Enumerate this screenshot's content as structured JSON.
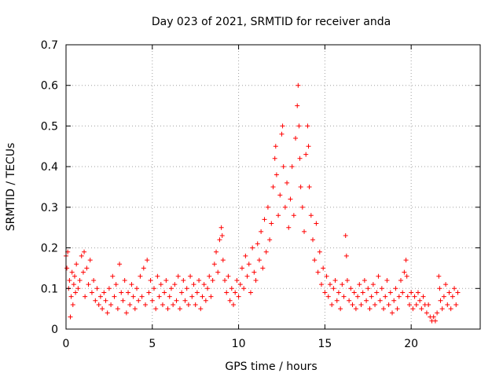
{
  "chart_data": {
    "type": "scatter",
    "title": "Day 023 of 2021, SRMTID for receiver anda",
    "xlabel": "GPS time / hours",
    "ylabel": "SRMTID / TECUs",
    "xlim": [
      0,
      24
    ],
    "ylim": [
      0,
      0.7
    ],
    "x_ticks": [
      0,
      5,
      10,
      15,
      20
    ],
    "y_ticks": [
      0,
      0.1,
      0.2,
      0.3,
      0.4,
      0.5,
      0.6,
      0.7
    ],
    "x_tick_labels": [
      "0",
      "5",
      "10",
      "15",
      "20"
    ],
    "y_tick_labels": [
      "0",
      "0.1",
      "0.2",
      "0.3",
      "0.4",
      "0.5",
      "0.6",
      "0.7"
    ],
    "grid": true,
    "marker": "+",
    "color": "#ff0000",
    "series": [
      {
        "name": "SRMTID",
        "points": [
          [
            0.0,
            0.18
          ],
          [
            0.05,
            0.15
          ],
          [
            0.1,
            0.19
          ],
          [
            0.15,
            0.1
          ],
          [
            0.2,
            0.12
          ],
          [
            0.25,
            0.03
          ],
          [
            0.3,
            0.08
          ],
          [
            0.35,
            0.14
          ],
          [
            0.4,
            0.06
          ],
          [
            0.45,
            0.11
          ],
          [
            0.5,
            0.13
          ],
          [
            0.55,
            0.09
          ],
          [
            0.6,
            0.16
          ],
          [
            0.7,
            0.1
          ],
          [
            0.8,
            0.12
          ],
          [
            0.9,
            0.18
          ],
          [
            1.0,
            0.14
          ],
          [
            1.05,
            0.19
          ],
          [
            1.1,
            0.08
          ],
          [
            1.2,
            0.15
          ],
          [
            1.3,
            0.11
          ],
          [
            1.4,
            0.17
          ],
          [
            1.5,
            0.09
          ],
          [
            1.6,
            0.12
          ],
          [
            1.7,
            0.07
          ],
          [
            1.8,
            0.1
          ],
          [
            1.9,
            0.06
          ],
          [
            2.0,
            0.08
          ],
          [
            2.1,
            0.05
          ],
          [
            2.2,
            0.09
          ],
          [
            2.3,
            0.07
          ],
          [
            2.4,
            0.04
          ],
          [
            2.5,
            0.1
          ],
          [
            2.6,
            0.06
          ],
          [
            2.7,
            0.13
          ],
          [
            2.8,
            0.08
          ],
          [
            2.9,
            0.11
          ],
          [
            3.0,
            0.05
          ],
          [
            3.1,
            0.16
          ],
          [
            3.2,
            0.09
          ],
          [
            3.3,
            0.07
          ],
          [
            3.4,
            0.12
          ],
          [
            3.5,
            0.04
          ],
          [
            3.6,
            0.09
          ],
          [
            3.7,
            0.06
          ],
          [
            3.8,
            0.11
          ],
          [
            3.9,
            0.08
          ],
          [
            4.0,
            0.05
          ],
          [
            4.1,
            0.1
          ],
          [
            4.2,
            0.07
          ],
          [
            4.3,
            0.13
          ],
          [
            4.4,
            0.08
          ],
          [
            4.5,
            0.15
          ],
          [
            4.6,
            0.06
          ],
          [
            4.7,
            0.17
          ],
          [
            4.8,
            0.09
          ],
          [
            4.9,
            0.12
          ],
          [
            5.0,
            0.07
          ],
          [
            5.1,
            0.1
          ],
          [
            5.2,
            0.05
          ],
          [
            5.3,
            0.13
          ],
          [
            5.4,
            0.08
          ],
          [
            5.5,
            0.11
          ],
          [
            5.6,
            0.06
          ],
          [
            5.7,
            0.09
          ],
          [
            5.8,
            0.12
          ],
          [
            5.9,
            0.05
          ],
          [
            6.0,
            0.08
          ],
          [
            6.1,
            0.1
          ],
          [
            6.2,
            0.06
          ],
          [
            6.3,
            0.11
          ],
          [
            6.4,
            0.07
          ],
          [
            6.5,
            0.13
          ],
          [
            6.6,
            0.05
          ],
          [
            6.7,
            0.09
          ],
          [
            6.8,
            0.12
          ],
          [
            6.9,
            0.07
          ],
          [
            7.0,
            0.1
          ],
          [
            7.1,
            0.06
          ],
          [
            7.2,
            0.13
          ],
          [
            7.3,
            0.08
          ],
          [
            7.4,
            0.11
          ],
          [
            7.5,
            0.06
          ],
          [
            7.6,
            0.09
          ],
          [
            7.7,
            0.12
          ],
          [
            7.8,
            0.05
          ],
          [
            7.9,
            0.08
          ],
          [
            8.0,
            0.11
          ],
          [
            8.1,
            0.07
          ],
          [
            8.2,
            0.1
          ],
          [
            8.3,
            0.13
          ],
          [
            8.4,
            0.08
          ],
          [
            8.5,
            0.12
          ],
          [
            8.6,
            0.16
          ],
          [
            8.7,
            0.19
          ],
          [
            8.8,
            0.14
          ],
          [
            8.9,
            0.22
          ],
          [
            9.0,
            0.25
          ],
          [
            9.05,
            0.23
          ],
          [
            9.1,
            0.17
          ],
          [
            9.2,
            0.12
          ],
          [
            9.3,
            0.09
          ],
          [
            9.4,
            0.13
          ],
          [
            9.5,
            0.07
          ],
          [
            9.6,
            0.1
          ],
          [
            9.7,
            0.06
          ],
          [
            9.8,
            0.09
          ],
          [
            9.9,
            0.12
          ],
          [
            10.0,
            0.08
          ],
          [
            10.1,
            0.11
          ],
          [
            10.2,
            0.15
          ],
          [
            10.3,
            0.1
          ],
          [
            10.4,
            0.18
          ],
          [
            10.5,
            0.13
          ],
          [
            10.6,
            0.16
          ],
          [
            10.7,
            0.09
          ],
          [
            10.8,
            0.2
          ],
          [
            10.9,
            0.14
          ],
          [
            11.0,
            0.12
          ],
          [
            11.1,
            0.21
          ],
          [
            11.2,
            0.17
          ],
          [
            11.3,
            0.24
          ],
          [
            11.4,
            0.15
          ],
          [
            11.5,
            0.27
          ],
          [
            11.6,
            0.19
          ],
          [
            11.7,
            0.3
          ],
          [
            11.8,
            0.22
          ],
          [
            11.9,
            0.26
          ],
          [
            12.0,
            0.35
          ],
          [
            12.1,
            0.42
          ],
          [
            12.15,
            0.45
          ],
          [
            12.2,
            0.38
          ],
          [
            12.3,
            0.28
          ],
          [
            12.4,
            0.33
          ],
          [
            12.5,
            0.48
          ],
          [
            12.55,
            0.5
          ],
          [
            12.6,
            0.4
          ],
          [
            12.7,
            0.3
          ],
          [
            12.8,
            0.36
          ],
          [
            12.9,
            0.25
          ],
          [
            13.0,
            0.32
          ],
          [
            13.1,
            0.4
          ],
          [
            13.2,
            0.28
          ],
          [
            13.3,
            0.47
          ],
          [
            13.4,
            0.55
          ],
          [
            13.45,
            0.6
          ],
          [
            13.5,
            0.5
          ],
          [
            13.55,
            0.42
          ],
          [
            13.6,
            0.35
          ],
          [
            13.7,
            0.3
          ],
          [
            13.8,
            0.24
          ],
          [
            13.9,
            0.43
          ],
          [
            14.0,
            0.5
          ],
          [
            14.05,
            0.45
          ],
          [
            14.1,
            0.35
          ],
          [
            14.2,
            0.28
          ],
          [
            14.3,
            0.22
          ],
          [
            14.4,
            0.17
          ],
          [
            14.5,
            0.26
          ],
          [
            14.6,
            0.14
          ],
          [
            14.7,
            0.19
          ],
          [
            14.8,
            0.11
          ],
          [
            14.9,
            0.15
          ],
          [
            15.0,
            0.09
          ],
          [
            15.1,
            0.13
          ],
          [
            15.2,
            0.08
          ],
          [
            15.3,
            0.11
          ],
          [
            15.4,
            0.06
          ],
          [
            15.5,
            0.1
          ],
          [
            15.6,
            0.12
          ],
          [
            15.7,
            0.07
          ],
          [
            15.8,
            0.09
          ],
          [
            15.9,
            0.05
          ],
          [
            16.0,
            0.11
          ],
          [
            16.1,
            0.08
          ],
          [
            16.2,
            0.23
          ],
          [
            16.25,
            0.18
          ],
          [
            16.3,
            0.12
          ],
          [
            16.4,
            0.07
          ],
          [
            16.5,
            0.1
          ],
          [
            16.6,
            0.06
          ],
          [
            16.7,
            0.09
          ],
          [
            16.8,
            0.05
          ],
          [
            16.9,
            0.08
          ],
          [
            17.0,
            0.11
          ],
          [
            17.1,
            0.06
          ],
          [
            17.2,
            0.09
          ],
          [
            17.3,
            0.12
          ],
          [
            17.4,
            0.07
          ],
          [
            17.5,
            0.1
          ],
          [
            17.6,
            0.05
          ],
          [
            17.7,
            0.08
          ],
          [
            17.8,
            0.11
          ],
          [
            17.9,
            0.06
          ],
          [
            18.0,
            0.09
          ],
          [
            18.1,
            0.13
          ],
          [
            18.2,
            0.07
          ],
          [
            18.3,
            0.1
          ],
          [
            18.4,
            0.05
          ],
          [
            18.5,
            0.08
          ],
          [
            18.6,
            0.12
          ],
          [
            18.7,
            0.06
          ],
          [
            18.8,
            0.09
          ],
          [
            18.9,
            0.04
          ],
          [
            19.0,
            0.07
          ],
          [
            19.1,
            0.1
          ],
          [
            19.2,
            0.05
          ],
          [
            19.3,
            0.08
          ],
          [
            19.4,
            0.12
          ],
          [
            19.5,
            0.09
          ],
          [
            19.6,
            0.14
          ],
          [
            19.7,
            0.17
          ],
          [
            19.75,
            0.13
          ],
          [
            19.8,
            0.08
          ],
          [
            19.9,
            0.06
          ],
          [
            20.0,
            0.09
          ],
          [
            20.1,
            0.05
          ],
          [
            20.2,
            0.08
          ],
          [
            20.3,
            0.06
          ],
          [
            20.4,
            0.09
          ],
          [
            20.5,
            0.07
          ],
          [
            20.6,
            0.05
          ],
          [
            20.7,
            0.08
          ],
          [
            20.8,
            0.06
          ],
          [
            20.9,
            0.04
          ],
          [
            21.0,
            0.06
          ],
          [
            21.1,
            0.03
          ],
          [
            21.2,
            0.02
          ],
          [
            21.3,
            0.03
          ],
          [
            21.4,
            0.02
          ],
          [
            21.5,
            0.04
          ],
          [
            21.6,
            0.13
          ],
          [
            21.65,
            0.1
          ],
          [
            21.7,
            0.07
          ],
          [
            21.8,
            0.05
          ],
          [
            21.9,
            0.08
          ],
          [
            22.0,
            0.11
          ],
          [
            22.1,
            0.06
          ],
          [
            22.2,
            0.09
          ],
          [
            22.3,
            0.05
          ],
          [
            22.4,
            0.08
          ],
          [
            22.5,
            0.1
          ],
          [
            22.6,
            0.06
          ],
          [
            22.7,
            0.09
          ]
        ]
      }
    ]
  }
}
